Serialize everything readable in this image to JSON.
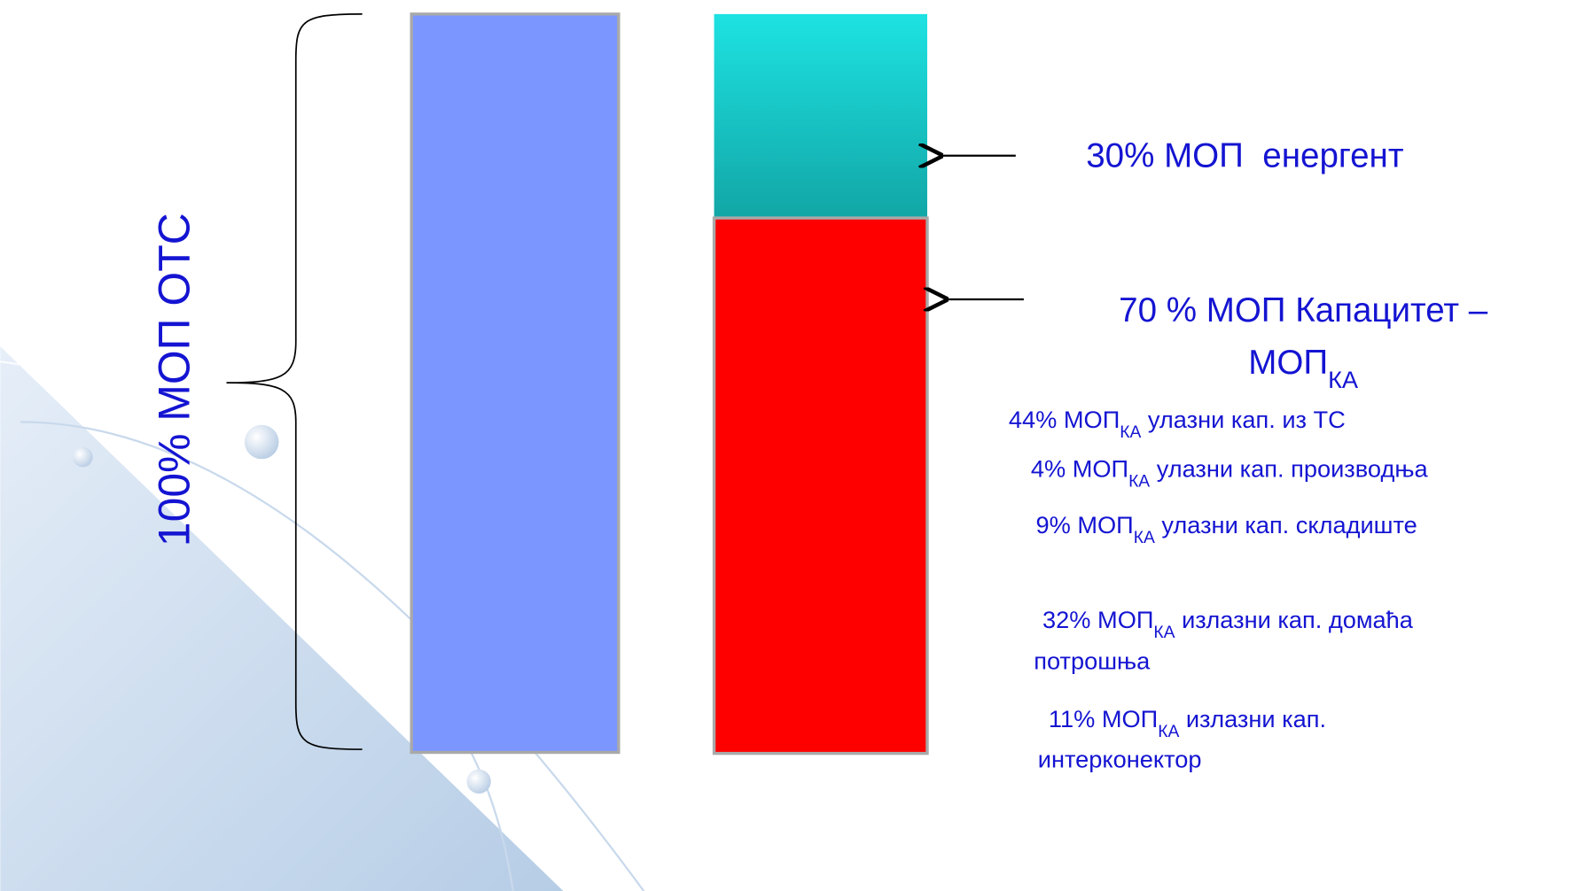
{
  "left_label": "100% МОП ОТС",
  "energy": "30% МОП  енергент",
  "capacity": {
    "line1": "70 % МОП Капацитет –",
    "line2": {
      "text": "МОП",
      "sub": "КА"
    }
  },
  "items": [
    {
      "text": "44% МОП",
      "sub": "КА",
      "rest": " улазни кап. из ТС"
    },
    {
      "text": "4% МОП",
      "sub": "КА",
      "rest": " улазни кап. производња"
    },
    {
      "text": "9% МОП",
      "sub": "КА",
      "rest": " улазни кап. складиште"
    },
    {
      "text": " 32% МОП",
      "sub": "КА",
      "rest": " излазни кап. домаћа",
      "line2": "потрошња"
    },
    {
      "text": " 11% МОП",
      "sub": "КА",
      "rest": " излазни кап.",
      "line2": "интерконектор"
    }
  ]
}
